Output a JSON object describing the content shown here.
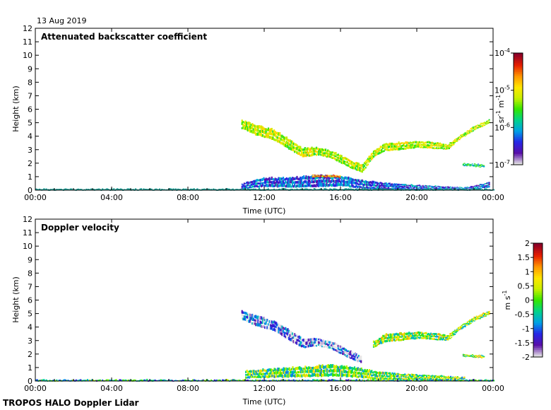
{
  "date_label": "13 Aug 2019",
  "footer": "TROPOS HALO Doppler Lidar",
  "colors": {
    "background": "#ffffff",
    "axis": "#000000",
    "colormap": [
      "#e6e6e6",
      "#5a0fa8",
      "#2626e6",
      "#00a0e6",
      "#00d28c",
      "#32e600",
      "#c8f000",
      "#ffe600",
      "#ff9600",
      "#e61e00",
      "#8c0028"
    ],
    "ground_clutter": "#1e9e96"
  },
  "chart_data": [
    {
      "type": "heatmap",
      "title": "Attenuated backscatter coefficient",
      "xlabel": "Time (UTC)",
      "ylabel": "Height (km)",
      "x_ticks": [
        "00:00",
        "04:00",
        "08:00",
        "12:00",
        "16:00",
        "20:00",
        "00:00"
      ],
      "xlim_hours": [
        0,
        24
      ],
      "ylim": [
        0,
        12
      ],
      "y_ticks": [
        "0",
        "1",
        "2",
        "3",
        "4",
        "5",
        "6",
        "7",
        "8",
        "9",
        "10",
        "11",
        "12"
      ],
      "colorbar": {
        "scale": "log",
        "range": [
          1e-07,
          0.0001
        ],
        "ticks": [
          "10-7",
          "10-6",
          "10-5",
          "10-4"
        ],
        "tick_superscripts": [
          "-7",
          "-6",
          "-5",
          "-4"
        ],
        "unit_label": "sr-1 m-1",
        "unit_parts": [
          "sr",
          "-1",
          " m",
          "-1"
        ]
      },
      "layers": [
        {
          "name": "cloud layer",
          "value_log10": -5.2,
          "track": [
            [
              10.8,
              4.9,
              0.7
            ],
            [
              11.5,
              4.5,
              0.8
            ],
            [
              12.5,
              4.1,
              0.8
            ],
            [
              13.3,
              3.4,
              0.8
            ],
            [
              14.0,
              2.8,
              0.7
            ],
            [
              14.8,
              2.9,
              0.6
            ],
            [
              15.6,
              2.6,
              0.6
            ],
            [
              16.4,
              2.0,
              0.6
            ],
            [
              17.1,
              1.6,
              0.6
            ],
            [
              17.7,
              2.7,
              0.5
            ],
            [
              18.3,
              3.2,
              0.6
            ],
            [
              19.2,
              3.3,
              0.6
            ],
            [
              20.1,
              3.4,
              0.5
            ],
            [
              21.0,
              3.3,
              0.5
            ],
            [
              21.6,
              3.2,
              0.4
            ],
            [
              22.2,
              3.9,
              0.3
            ],
            [
              23.0,
              4.6,
              0.3
            ],
            [
              23.8,
              5.1,
              0.3
            ]
          ]
        },
        {
          "name": "boundary layer aerosol",
          "value_log10": -6.3,
          "track": [
            [
              10.8,
              0.3,
              0.4
            ],
            [
              12.0,
              0.6,
              0.7
            ],
            [
              13.5,
              0.6,
              0.8
            ],
            [
              15.0,
              0.7,
              0.9
            ],
            [
              16.0,
              0.7,
              0.8
            ],
            [
              17.3,
              0.4,
              0.6
            ],
            [
              18.5,
              0.3,
              0.5
            ],
            [
              20.3,
              0.2,
              0.3
            ],
            [
              22.5,
              0.1,
              0.2
            ],
            [
              23.8,
              0.4,
              0.4
            ]
          ]
        },
        {
          "name": "residual layer",
          "value_log10": -4.6,
          "track": [
            [
              14.5,
              1.05,
              0.15
            ],
            [
              15.6,
              1.05,
              0.15
            ],
            [
              16.0,
              1.0,
              0.12
            ]
          ]
        },
        {
          "name": "upper fragment",
          "value_log10": -5.8,
          "track": [
            [
              22.4,
              1.9,
              0.2
            ],
            [
              23.5,
              1.8,
              0.2
            ]
          ]
        },
        {
          "name": "near-surface",
          "value_log10": -6.5,
          "track": [
            [
              0.0,
              0.05,
              0.12
            ],
            [
              24.0,
              0.05,
              0.12
            ]
          ]
        }
      ]
    },
    {
      "type": "heatmap",
      "title": "Doppler velocity",
      "xlabel": "Time (UTC)",
      "ylabel": "Height (km)",
      "x_ticks": [
        "00:00",
        "04:00",
        "08:00",
        "12:00",
        "16:00",
        "20:00",
        "00:00"
      ],
      "xlim_hours": [
        0,
        24
      ],
      "ylim": [
        0,
        12
      ],
      "y_ticks": [
        "0",
        "1",
        "2",
        "3",
        "4",
        "5",
        "6",
        "7",
        "8",
        "9",
        "10",
        "11",
        "12"
      ],
      "colorbar": {
        "scale": "linear",
        "range": [
          -2,
          2
        ],
        "ticks": [
          "-2",
          "-1.5",
          "-1",
          "-0.5",
          "0",
          "0.5",
          "1",
          "1.5",
          "2"
        ],
        "unit_label": "m s-1",
        "unit_parts": [
          "m s",
          "-1"
        ]
      },
      "layers": [
        {
          "name": "cloud layer",
          "velocity_ms": -1.5,
          "track": [
            [
              10.8,
              4.9,
              0.7
            ],
            [
              11.5,
              4.5,
              0.8
            ],
            [
              12.5,
              4.1,
              0.8
            ],
            [
              13.3,
              3.4,
              0.8
            ],
            [
              14.0,
              2.8,
              0.7
            ],
            [
              14.8,
              2.9,
              0.6
            ],
            [
              15.6,
              2.6,
              0.6
            ],
            [
              16.4,
              2.0,
              0.6
            ],
            [
              17.1,
              1.6,
              0.6
            ]
          ]
        },
        {
          "name": "afternoon cloud",
          "velocity_ms": 0.2,
          "track": [
            [
              17.7,
              2.7,
              0.5
            ],
            [
              18.3,
              3.2,
              0.6
            ],
            [
              19.2,
              3.3,
              0.6
            ],
            [
              20.1,
              3.4,
              0.5
            ],
            [
              21.0,
              3.3,
              0.5
            ],
            [
              21.6,
              3.2,
              0.4
            ],
            [
              22.2,
              3.9,
              0.3
            ],
            [
              23.0,
              4.6,
              0.3
            ],
            [
              23.8,
              5.1,
              0.3
            ]
          ]
        },
        {
          "name": "boundary layer",
          "velocity_ms": 0.0,
          "track": [
            [
              11.0,
              0.5,
              0.6
            ],
            [
              12.5,
              0.6,
              0.7
            ],
            [
              14.0,
              0.7,
              0.8
            ],
            [
              15.5,
              0.8,
              0.9
            ],
            [
              16.5,
              0.7,
              0.8
            ],
            [
              18.0,
              0.4,
              0.6
            ],
            [
              20.0,
              0.3,
              0.4
            ],
            [
              22.5,
              0.15,
              0.3
            ]
          ]
        },
        {
          "name": "upper fragment",
          "velocity_ms": 0.3,
          "track": [
            [
              22.4,
              1.9,
              0.2
            ],
            [
              23.5,
              1.8,
              0.2
            ]
          ]
        },
        {
          "name": "near-surface",
          "velocity_ms": -0.5,
          "track": [
            [
              0.0,
              0.05,
              0.12
            ],
            [
              24.0,
              0.05,
              0.12
            ]
          ]
        }
      ]
    }
  ]
}
